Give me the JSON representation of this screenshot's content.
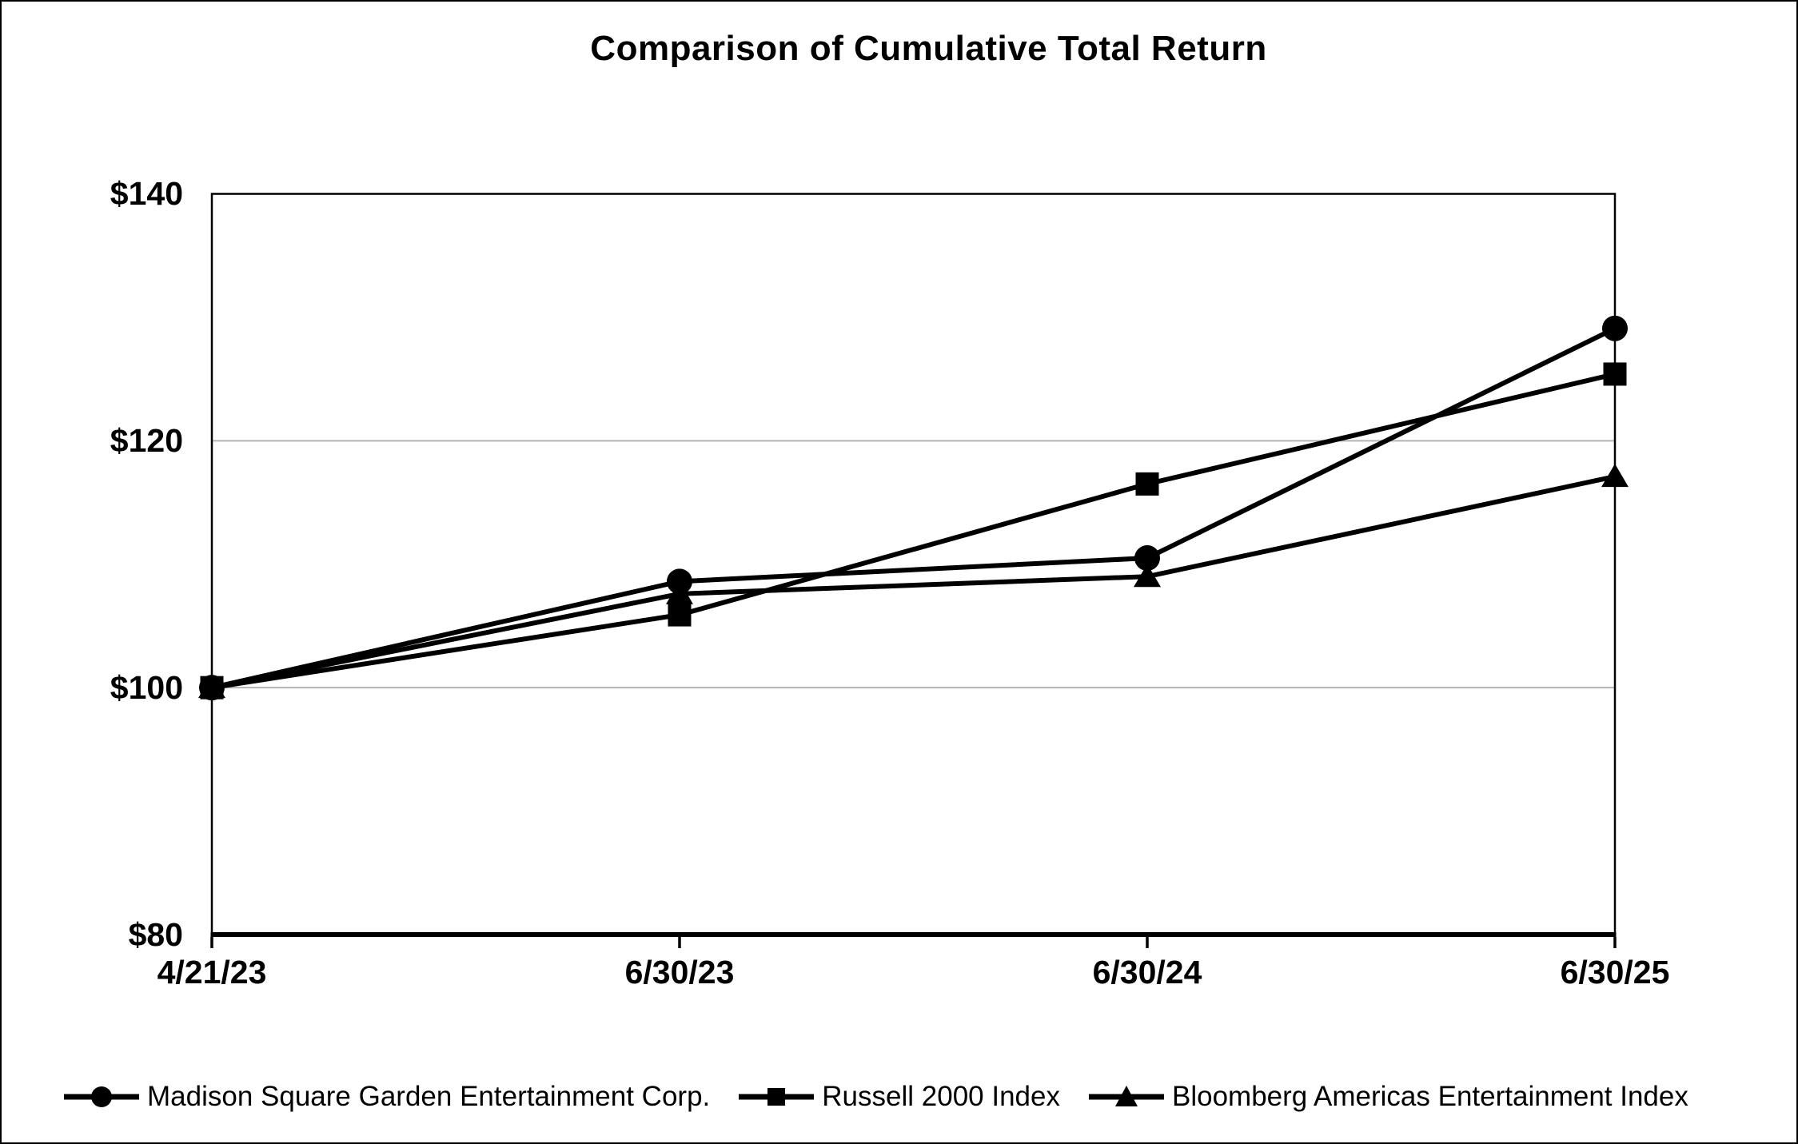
{
  "chart_data": {
    "type": "line",
    "title": "Comparison of Cumulative Total Return",
    "categories": [
      "4/21/23",
      "6/30/23",
      "6/30/24",
      "6/30/25"
    ],
    "series": [
      {
        "name": "Madison Square Garden Entertainment Corp.",
        "marker": "circle",
        "values": [
          100,
          108.6,
          110.5,
          129.1
        ]
      },
      {
        "name": "Russell 2000 Index",
        "marker": "square",
        "values": [
          100,
          105.9,
          116.5,
          125.4
        ]
      },
      {
        "name": "Bloomberg Americas Entertainment Index",
        "marker": "triangle",
        "values": [
          100,
          107.6,
          109.0,
          117.1
        ]
      }
    ],
    "y_ticks": [
      {
        "label": "$140",
        "value": 140
      },
      {
        "label": "$120",
        "value": 120
      },
      {
        "label": "$100",
        "value": 100
      },
      {
        "label": "$80",
        "value": 80
      }
    ],
    "ylim": [
      80,
      140
    ],
    "gridlines": [
      100,
      120
    ],
    "grid_on": true,
    "legend_position": "bottom",
    "line_color": "#000000",
    "gridline_color": "#b3b3b3",
    "background_color": "#ffffff"
  }
}
